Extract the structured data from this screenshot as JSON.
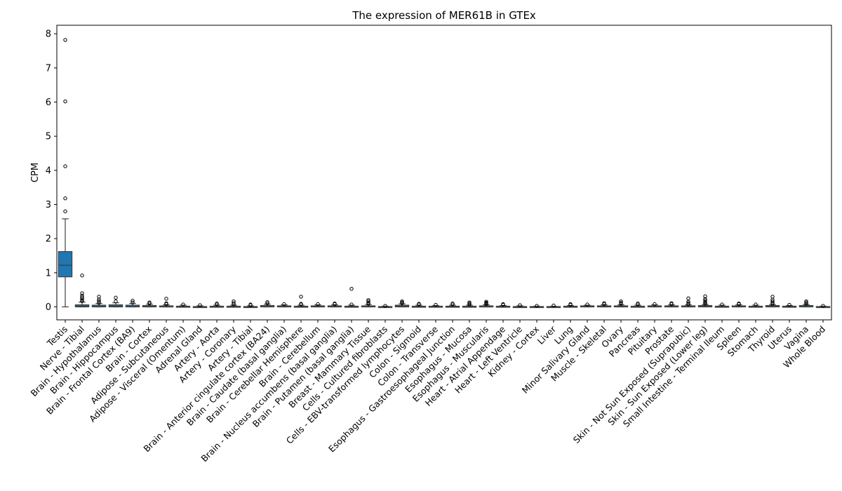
{
  "chart_data": {
    "type": "box",
    "title": "The expression of MER61B in GTEx",
    "xlabel": "",
    "ylabel": "CPM",
    "ylim": [
      -0.38,
      8.25
    ],
    "yticks": [
      0,
      1,
      2,
      3,
      4,
      5,
      6,
      7,
      8
    ],
    "box_color": "#1f77b4",
    "categories": [
      "Testis",
      "Nerve - Tibial",
      "Brain - Hypothalamus",
      "Brain - Hippocampus",
      "Brain - Frontal Cortex (BA9)",
      "Brain - Cortex",
      "Adipose - Subcutaneous",
      "Adipose - Visceral (Omentum)",
      "Adrenal Gland",
      "Artery - Aorta",
      "Artery - Coronary",
      "Artery - Tibial",
      "Brain - Anterior cingulate cortex (BA24)",
      "Brain - Caudate (basal ganglia)",
      "Brain - Cerebellar Hemisphere",
      "Brain - Cerebellum",
      "Brain - Nucleus accumbens (basal ganglia)",
      "Brain - Putamen (basal ganglia)",
      "Breast - Mammary Tissue",
      "Cells - Cultured fibroblasts",
      "Cells - EBV-transformed lymphocytes",
      "Colon - Sigmoid",
      "Colon - Transverse",
      "Esophagus - Gastroesophageal Junction",
      "Esophagus - Mucosa",
      "Esophagus - Muscularis",
      "Heart - Atrial Appendage",
      "Heart - Left Ventricle",
      "Kidney - Cortex",
      "Liver",
      "Lung",
      "Minor Salivary Gland",
      "Muscle - Skeletal",
      "Ovary",
      "Pancreas",
      "Pituitary",
      "Prostate",
      "Skin - Not Sun Exposed (Suprapubic)",
      "Skin - Sun Exposed (Lower leg)",
      "Small Intestine - Terminal Ileum",
      "Spleen",
      "Stomach",
      "Thyroid",
      "Uterus",
      "Vagina",
      "Whole Blood"
    ],
    "boxes": [
      {
        "q1": 0.88,
        "median": 1.22,
        "q3": 1.62,
        "whisker_low": 0.0,
        "whisker_high": 2.58,
        "outliers": [
          2.8,
          3.18,
          4.12,
          6.02,
          7.82
        ]
      },
      {
        "q1": 0.0,
        "median": 0.02,
        "q3": 0.06,
        "whisker_low": 0.0,
        "whisker_high": 0.14,
        "outliers": [
          0.17,
          0.2,
          0.24,
          0.28,
          0.33,
          0.4,
          0.92
        ]
      },
      {
        "q1": 0.0,
        "median": 0.01,
        "q3": 0.05,
        "whisker_low": 0.0,
        "whisker_high": 0.1,
        "outliers": [
          0.12,
          0.17,
          0.22,
          0.3
        ]
      },
      {
        "q1": 0.0,
        "median": 0.02,
        "q3": 0.06,
        "whisker_low": 0.0,
        "whisker_high": 0.12,
        "outliers": [
          0.16,
          0.27
        ]
      },
      {
        "q1": 0.0,
        "median": 0.01,
        "q3": 0.05,
        "whisker_low": 0.0,
        "whisker_high": 0.1,
        "outliers": [
          0.13,
          0.18
        ]
      },
      {
        "q1": 0.0,
        "median": 0.01,
        "q3": 0.04,
        "whisker_low": 0.0,
        "whisker_high": 0.08,
        "outliers": [
          0.1,
          0.13
        ]
      },
      {
        "q1": 0.0,
        "median": 0.0,
        "q3": 0.03,
        "whisker_low": 0.0,
        "whisker_high": 0.06,
        "outliers": [
          0.08,
          0.11,
          0.24
        ]
      },
      {
        "q1": 0.0,
        "median": 0.0,
        "q3": 0.02,
        "whisker_low": 0.0,
        "whisker_high": 0.05,
        "outliers": [
          0.07
        ]
      },
      {
        "q1": 0.0,
        "median": 0.0,
        "q3": 0.01,
        "whisker_low": 0.0,
        "whisker_high": 0.03,
        "outliers": [
          0.05
        ]
      },
      {
        "q1": 0.0,
        "median": 0.0,
        "q3": 0.02,
        "whisker_low": 0.0,
        "whisker_high": 0.05,
        "outliers": [
          0.07,
          0.1
        ]
      },
      {
        "q1": 0.0,
        "median": 0.0,
        "q3": 0.02,
        "whisker_low": 0.0,
        "whisker_high": 0.05,
        "outliers": [
          0.07,
          0.11,
          0.16
        ]
      },
      {
        "q1": 0.0,
        "median": 0.0,
        "q3": 0.01,
        "whisker_low": 0.0,
        "whisker_high": 0.03,
        "outliers": [
          0.05,
          0.07
        ]
      },
      {
        "q1": 0.0,
        "median": 0.01,
        "q3": 0.04,
        "whisker_low": 0.0,
        "whisker_high": 0.08,
        "outliers": [
          0.1,
          0.14
        ]
      },
      {
        "q1": 0.0,
        "median": 0.01,
        "q3": 0.03,
        "whisker_low": 0.0,
        "whisker_high": 0.06,
        "outliers": [
          0.08
        ]
      },
      {
        "q1": 0.0,
        "median": 0.0,
        "q3": 0.02,
        "whisker_low": 0.0,
        "whisker_high": 0.05,
        "outliers": [
          0.07,
          0.09,
          0.3
        ]
      },
      {
        "q1": 0.0,
        "median": 0.01,
        "q3": 0.03,
        "whisker_low": 0.0,
        "whisker_high": 0.06,
        "outliers": [
          0.08
        ]
      },
      {
        "q1": 0.0,
        "median": 0.01,
        "q3": 0.03,
        "whisker_low": 0.0,
        "whisker_high": 0.06,
        "outliers": [
          0.08,
          0.1
        ]
      },
      {
        "q1": 0.0,
        "median": 0.0,
        "q3": 0.02,
        "whisker_low": 0.0,
        "whisker_high": 0.05,
        "outliers": [
          0.07,
          0.53
        ]
      },
      {
        "q1": 0.0,
        "median": 0.01,
        "q3": 0.03,
        "whisker_low": 0.0,
        "whisker_high": 0.07,
        "outliers": [
          0.09,
          0.12,
          0.16,
          0.2
        ]
      },
      {
        "q1": 0.0,
        "median": 0.0,
        "q3": 0.01,
        "whisker_low": 0.0,
        "whisker_high": 0.02,
        "outliers": [
          0.03
        ]
      },
      {
        "q1": 0.0,
        "median": 0.02,
        "q3": 0.05,
        "whisker_low": 0.0,
        "whisker_high": 0.09,
        "outliers": [
          0.11,
          0.13,
          0.16
        ]
      },
      {
        "q1": 0.0,
        "median": 0.0,
        "q3": 0.02,
        "whisker_low": 0.0,
        "whisker_high": 0.05,
        "outliers": [
          0.07,
          0.09
        ]
      },
      {
        "q1": 0.0,
        "median": 0.0,
        "q3": 0.02,
        "whisker_low": 0.0,
        "whisker_high": 0.04,
        "outliers": [
          0.06
        ]
      },
      {
        "q1": 0.0,
        "median": 0.0,
        "q3": 0.02,
        "whisker_low": 0.0,
        "whisker_high": 0.05,
        "outliers": [
          0.07,
          0.1
        ]
      },
      {
        "q1": 0.0,
        "median": 0.0,
        "q3": 0.02,
        "whisker_low": 0.0,
        "whisker_high": 0.05,
        "outliers": [
          0.07,
          0.1,
          0.13
        ]
      },
      {
        "q1": 0.0,
        "median": 0.0,
        "q3": 0.03,
        "whisker_low": 0.0,
        "whisker_high": 0.06,
        "outliers": [
          0.08,
          0.1,
          0.12,
          0.15
        ]
      },
      {
        "q1": 0.0,
        "median": 0.0,
        "q3": 0.02,
        "whisker_low": 0.0,
        "whisker_high": 0.04,
        "outliers": [
          0.06,
          0.08
        ]
      },
      {
        "q1": 0.0,
        "median": 0.0,
        "q3": 0.01,
        "whisker_low": 0.0,
        "whisker_high": 0.03,
        "outliers": [
          0.05
        ]
      },
      {
        "q1": 0.0,
        "median": 0.0,
        "q3": 0.01,
        "whisker_low": 0.0,
        "whisker_high": 0.02,
        "outliers": [
          0.03
        ]
      },
      {
        "q1": 0.0,
        "median": 0.0,
        "q3": 0.01,
        "whisker_low": 0.0,
        "whisker_high": 0.02,
        "outliers": [
          0.04
        ]
      },
      {
        "q1": 0.0,
        "median": 0.0,
        "q3": 0.02,
        "whisker_low": 0.0,
        "whisker_high": 0.04,
        "outliers": [
          0.06,
          0.08
        ]
      },
      {
        "q1": 0.0,
        "median": 0.01,
        "q3": 0.03,
        "whisker_low": 0.0,
        "whisker_high": 0.05,
        "outliers": [
          0.07
        ]
      },
      {
        "q1": 0.0,
        "median": 0.01,
        "q3": 0.03,
        "whisker_low": 0.0,
        "whisker_high": 0.06,
        "outliers": [
          0.08,
          0.11
        ]
      },
      {
        "q1": 0.0,
        "median": 0.01,
        "q3": 0.03,
        "whisker_low": 0.0,
        "whisker_high": 0.06,
        "outliers": [
          0.09,
          0.12,
          0.16
        ]
      },
      {
        "q1": 0.0,
        "median": 0.0,
        "q3": 0.02,
        "whisker_low": 0.0,
        "whisker_high": 0.05,
        "outliers": [
          0.07,
          0.1
        ]
      },
      {
        "q1": 0.0,
        "median": 0.01,
        "q3": 0.03,
        "whisker_low": 0.0,
        "whisker_high": 0.06,
        "outliers": [
          0.08
        ]
      },
      {
        "q1": 0.0,
        "median": 0.01,
        "q3": 0.03,
        "whisker_low": 0.0,
        "whisker_high": 0.06,
        "outliers": [
          0.08,
          0.11
        ]
      },
      {
        "q1": 0.0,
        "median": 0.01,
        "q3": 0.03,
        "whisker_low": 0.0,
        "whisker_high": 0.06,
        "outliers": [
          0.08,
          0.11,
          0.15,
          0.25
        ]
      },
      {
        "q1": 0.0,
        "median": 0.01,
        "q3": 0.04,
        "whisker_low": 0.0,
        "whisker_high": 0.07,
        "outliers": [
          0.09,
          0.12,
          0.15,
          0.19,
          0.23,
          0.31
        ]
      },
      {
        "q1": 0.0,
        "median": 0.0,
        "q3": 0.02,
        "whisker_low": 0.0,
        "whisker_high": 0.05,
        "outliers": [
          0.07
        ]
      },
      {
        "q1": 0.0,
        "median": 0.01,
        "q3": 0.03,
        "whisker_low": 0.0,
        "whisker_high": 0.06,
        "outliers": [
          0.08,
          0.1
        ]
      },
      {
        "q1": 0.0,
        "median": 0.0,
        "q3": 0.02,
        "whisker_low": 0.0,
        "whisker_high": 0.05,
        "outliers": [
          0.07
        ]
      },
      {
        "q1": 0.0,
        "median": 0.01,
        "q3": 0.04,
        "whisker_low": 0.0,
        "whisker_high": 0.07,
        "outliers": [
          0.09,
          0.12,
          0.16,
          0.21,
          0.3
        ]
      },
      {
        "q1": 0.0,
        "median": 0.0,
        "q3": 0.02,
        "whisker_low": 0.0,
        "whisker_high": 0.04,
        "outliers": [
          0.06
        ]
      },
      {
        "q1": 0.0,
        "median": 0.01,
        "q3": 0.04,
        "whisker_low": 0.0,
        "whisker_high": 0.07,
        "outliers": [
          0.09,
          0.13,
          0.16
        ]
      },
      {
        "q1": 0.0,
        "median": 0.0,
        "q3": 0.01,
        "whisker_low": 0.0,
        "whisker_high": 0.02,
        "outliers": [
          0.03
        ]
      }
    ]
  }
}
